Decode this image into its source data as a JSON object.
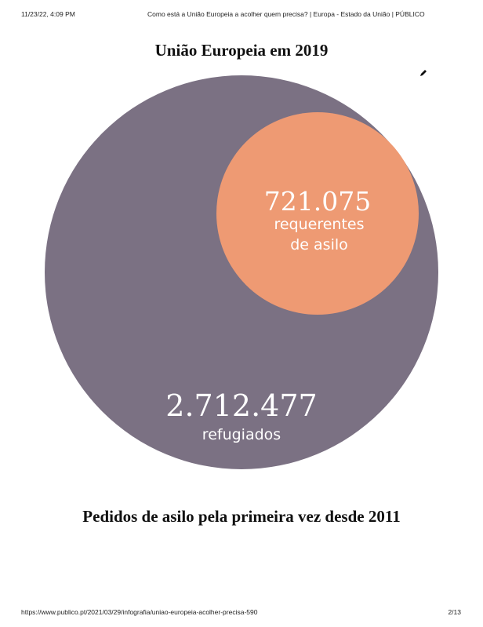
{
  "print_header": {
    "date": "11/23/22, 4:09 PM",
    "title": "Como está a União Europeia a acolher quem precisa? | Europa - Estado da União | PÚBLICO"
  },
  "infographic": {
    "title": "União Europeia em 2019",
    "next_section_title": "Pedidos de asilo pela primeira vez desde 2011"
  },
  "chart_data": {
    "type": "bubble",
    "title": "União Europeia em 2019",
    "items": [
      {
        "value_label": "2.712.477",
        "value": 2712477,
        "label": "refugiados",
        "color": "#7b7183"
      },
      {
        "value_label": "721.075",
        "value": 721075,
        "label_lines": [
          "requerentes",
          "de asilo"
        ],
        "color": "#ee9a73"
      }
    ]
  },
  "print_footer": {
    "url": "https://www.publico.pt/2021/03/29/infografia/uniao-europeia-acolher-precisa-590",
    "pages": "2/13"
  }
}
